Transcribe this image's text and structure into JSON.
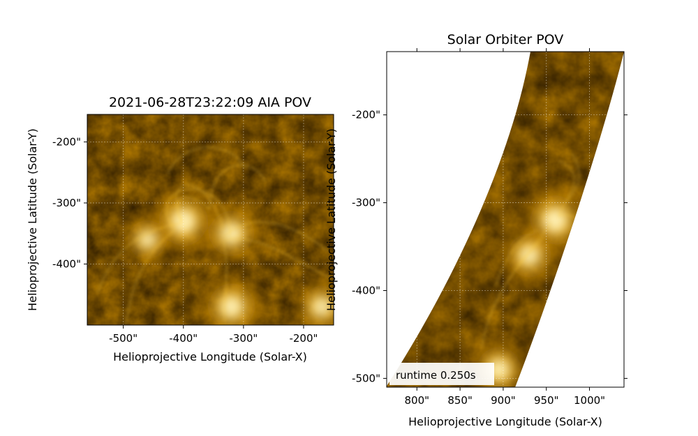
{
  "chart_data": [
    {
      "type": "heatmap",
      "title": "2021-06-28T23:22:09 AIA POV",
      "xlabel": "Helioprojective Longitude (Solar-X)",
      "ylabel": "Helioprojective Latitude (Solar-Y)",
      "xlim": [
        -560,
        -150
      ],
      "ylim": [
        -500,
        -155
      ],
      "x_ticks": [
        {
          "value": -500,
          "label": "-500\""
        },
        {
          "value": -400,
          "label": "-400\""
        },
        {
          "value": -300,
          "label": "-300\""
        },
        {
          "value": -200,
          "label": "-200\""
        }
      ],
      "y_ticks": [
        {
          "value": -200,
          "label": "-200\""
        },
        {
          "value": -300,
          "label": "-300\""
        },
        {
          "value": -400,
          "label": "-400\""
        }
      ],
      "grid": true,
      "colormap": [
        "#000000",
        "#3a2400",
        "#8a5a00",
        "#d49400",
        "#ffcf33",
        "#fff2b0"
      ],
      "bright_features": [
        {
          "x": -400,
          "y": -330,
          "intensity": 1.0
        },
        {
          "x": -320,
          "y": -350,
          "intensity": 0.85
        },
        {
          "x": -320,
          "y": -470,
          "intensity": 0.9
        },
        {
          "x": -460,
          "y": -360,
          "intensity": 0.65
        },
        {
          "x": -170,
          "y": -470,
          "intensity": 0.75
        }
      ]
    },
    {
      "type": "heatmap",
      "title": "Solar Orbiter POV",
      "xlabel": "Helioprojective Longitude (Solar-X)",
      "ylabel": "Helioprojective Latitude (Solar-Y)",
      "xlim": [
        765,
        1040
      ],
      "ylim": [
        -510,
        -128
      ],
      "x_ticks": [
        {
          "value": 800,
          "label": "800\""
        },
        {
          "value": 850,
          "label": "850\""
        },
        {
          "value": 900,
          "label": "900\""
        },
        {
          "value": 950,
          "label": "950\""
        },
        {
          "value": 1000,
          "label": "1000\""
        }
      ],
      "y_ticks": [
        {
          "value": -200,
          "label": "-200\""
        },
        {
          "value": -300,
          "label": "-300\""
        },
        {
          "value": -400,
          "label": "-400\""
        },
        {
          "value": -500,
          "label": "-500\""
        }
      ],
      "grid": true,
      "colormap": [
        "#000000",
        "#3a2400",
        "#8a5a00",
        "#d49400",
        "#ffcf33",
        "#fff2b0"
      ],
      "bright_features": [
        {
          "x": 960,
          "y": -320,
          "intensity": 1.0
        },
        {
          "x": 930,
          "y": -360,
          "intensity": 0.8
        },
        {
          "x": 895,
          "y": -490,
          "intensity": 0.85
        }
      ]
    }
  ],
  "annotation": {
    "runtime_label": "runtime 0.250s"
  }
}
